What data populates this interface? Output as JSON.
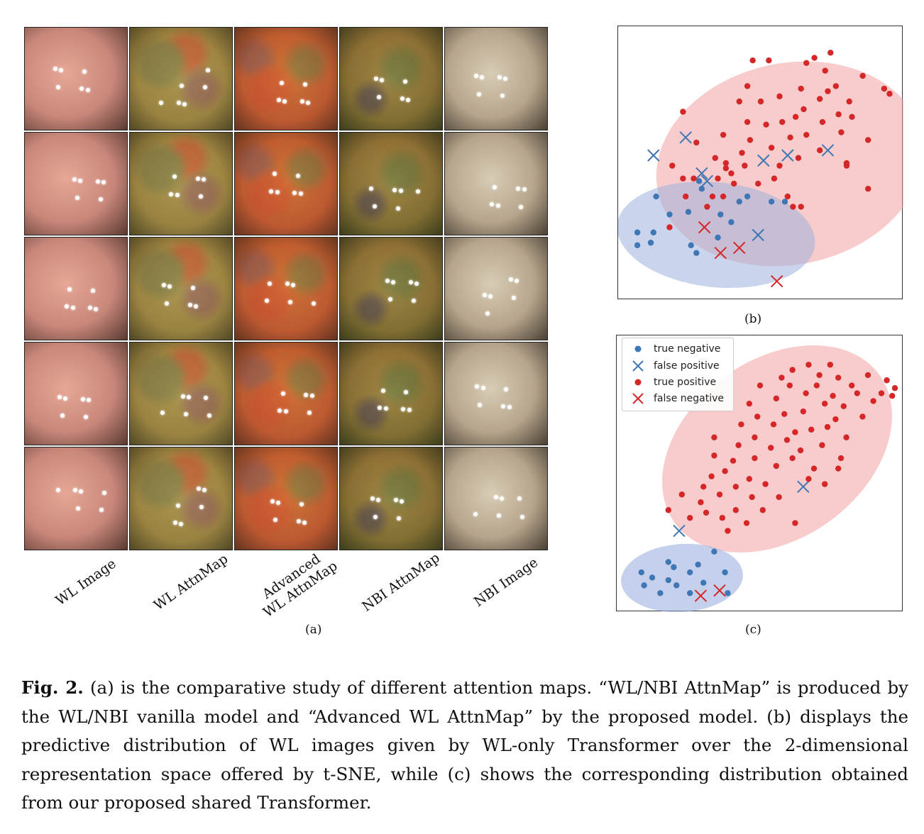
{
  "panel_a": {
    "column_labels": [
      {
        "lines": [
          "WL Image"
        ]
      },
      {
        "lines": [
          "WL AttnMap"
        ]
      },
      {
        "lines": [
          "Advanced",
          "WL AttnMap"
        ]
      },
      {
        "lines": [
          "NBI AttnMap"
        ]
      },
      {
        "lines": [
          "NBI Image"
        ]
      }
    ],
    "sublabel": "(a)",
    "rows": 5
  },
  "panel_b": {
    "sublabel": "(b)"
  },
  "panel_c": {
    "sublabel": "(c)",
    "legend": [
      {
        "label": "true negative",
        "marker": "dot",
        "color": "#3f77b4"
      },
      {
        "label": "false positive",
        "marker": "x",
        "color": "#3f77b4"
      },
      {
        "label": "true positive",
        "marker": "dot",
        "color": "#d62728"
      },
      {
        "label": "false negative",
        "marker": "x",
        "color": "#d62728"
      }
    ]
  },
  "colors": {
    "negative": "#3f77b4",
    "positive": "#d62728",
    "negative_region": "#9fb3df",
    "positive_region": "#f2a3a3"
  },
  "chart_data": [
    {
      "type": "scatter",
      "title": "(b)",
      "xlim": [
        0,
        100
      ],
      "ylim": [
        0,
        100
      ],
      "series": [
        {
          "name": "true negative",
          "marker": "dot",
          "points": [
            [
              4,
              23
            ],
            [
              10,
              23
            ],
            [
              9,
              19
            ],
            [
              4,
              18
            ],
            [
              24,
              18
            ],
            [
              11,
              37
            ],
            [
              16,
              30
            ],
            [
              23,
              31
            ],
            [
              28,
              40
            ],
            [
              27,
              43
            ],
            [
              42,
              35
            ],
            [
              45,
              37
            ],
            [
              54,
              35
            ],
            [
              59,
              35
            ],
            [
              35,
              30
            ],
            [
              39,
              27
            ],
            [
              34,
              21
            ],
            [
              26,
              15
            ]
          ]
        },
        {
          "name": "false positive",
          "marker": "x",
          "points": [
            [
              10,
              53
            ],
            [
              22,
              60
            ],
            [
              28,
              46
            ],
            [
              30,
              43
            ],
            [
              51,
              51
            ],
            [
              60,
              53
            ],
            [
              75,
              55
            ],
            [
              49,
              22
            ]
          ]
        },
        {
          "name": "true positive",
          "marker": "dot",
          "points": [
            [
              16,
              25
            ],
            [
              21,
              44
            ],
            [
              17,
              49
            ],
            [
              22,
              37
            ],
            [
              25,
              44
            ],
            [
              21,
              70
            ],
            [
              26,
              58
            ],
            [
              33,
              52
            ],
            [
              36,
              61
            ],
            [
              37,
              48
            ],
            [
              39,
              46
            ],
            [
              42,
              74
            ],
            [
              43,
              54
            ],
            [
              45,
              66
            ],
            [
              46,
              59
            ],
            [
              45,
              80
            ],
            [
              50,
              74
            ],
            [
              47,
              90
            ],
            [
              53,
              90
            ],
            [
              52,
              65
            ],
            [
              54,
              56
            ],
            [
              55,
              44
            ],
            [
              57,
              49
            ],
            [
              57,
              76
            ],
            [
              58,
              66
            ],
            [
              61,
              60
            ],
            [
              63,
              68
            ],
            [
              64,
              52
            ],
            [
              66,
              71
            ],
            [
              65,
              79
            ],
            [
              67,
              61
            ],
            [
              67,
              89
            ],
            [
              70,
              91
            ],
            [
              72,
              55
            ],
            [
              73,
              66
            ],
            [
              72,
              75
            ],
            [
              74,
              86
            ],
            [
              76,
              93
            ],
            [
              75,
              78
            ],
            [
              78,
              80
            ],
            [
              79,
              69
            ],
            [
              80,
              62
            ],
            [
              83,
              74
            ],
            [
              84,
              68
            ],
            [
              82,
              50
            ],
            [
              88,
              84
            ],
            [
              90,
              59
            ],
            [
              90,
              40
            ],
            [
              96,
              79
            ],
            [
              98,
              77
            ],
            [
              82,
              49
            ],
            [
              60,
              37
            ],
            [
              62,
              33
            ],
            [
              65,
              33
            ],
            [
              49,
              42
            ],
            [
              44,
              49
            ],
            [
              40,
              42
            ],
            [
              36,
              37
            ],
            [
              32,
              37
            ],
            [
              30,
              33
            ],
            [
              37,
              50
            ],
            [
              34,
              44
            ]
          ]
        },
        {
          "name": "false negative",
          "marker": "x",
          "points": [
            [
              29,
              25
            ],
            [
              35,
              15
            ],
            [
              42,
              17
            ],
            [
              56,
              4
            ]
          ]
        }
      ]
    },
    {
      "type": "scatter",
      "title": "(c)",
      "xlim": [
        0,
        100
      ],
      "ylim": [
        0,
        100
      ],
      "series": [
        {
          "name": "true negative",
          "marker": "dot",
          "points": [
            [
              6,
              12
            ],
            [
              7,
              7
            ],
            [
              10,
              10
            ],
            [
              13,
              4
            ],
            [
              16,
              16
            ],
            [
              16,
              9
            ],
            [
              18,
              14
            ],
            [
              19,
              7
            ],
            [
              24,
              12
            ],
            [
              24,
              4
            ],
            [
              27,
              15
            ],
            [
              29,
              8
            ],
            [
              33,
              20
            ],
            [
              37,
              12
            ],
            [
              38,
              4
            ]
          ]
        },
        {
          "name": "false positive",
          "marker": "x",
          "points": [
            [
              20,
              28
            ],
            [
              66,
              45
            ]
          ]
        },
        {
          "name": "true positive",
          "marker": "dot",
          "points": [
            [
              16,
              36
            ],
            [
              21,
              42
            ],
            [
              24,
              33
            ],
            [
              28,
              39
            ],
            [
              29,
              45
            ],
            [
              30,
              35
            ],
            [
              32,
              49
            ],
            [
              33,
              57
            ],
            [
              33,
              64
            ],
            [
              35,
              42
            ],
            [
              36,
              33
            ],
            [
              37,
              51
            ],
            [
              38,
              28
            ],
            [
              40,
              55
            ],
            [
              41,
              36
            ],
            [
              41,
              45
            ],
            [
              42,
              61
            ],
            [
              43,
              69
            ],
            [
              45,
              31
            ],
            [
              46,
              48
            ],
            [
              46,
              77
            ],
            [
              47,
              41
            ],
            [
              48,
              56
            ],
            [
              48,
              64
            ],
            [
              49,
              72
            ],
            [
              50,
              84
            ],
            [
              51,
              36
            ],
            [
              52,
              46
            ],
            [
              54,
              60
            ],
            [
              55,
              69
            ],
            [
              56,
              53
            ],
            [
              56,
              79
            ],
            [
              57,
              41
            ],
            [
              58,
              87
            ],
            [
              59,
              73
            ],
            [
              60,
              63
            ],
            [
              61,
              84
            ],
            [
              62,
              90
            ],
            [
              62,
              56
            ],
            [
              63,
              66
            ],
            [
              63,
              31
            ],
            [
              65,
              59
            ],
            [
              66,
              74
            ],
            [
              67,
              81
            ],
            [
              68,
              92
            ],
            [
              68,
              48
            ],
            [
              69,
              67
            ],
            [
              70,
              52
            ],
            [
              71,
              84
            ],
            [
              72,
              88
            ],
            [
              73,
              61
            ],
            [
              74,
              77
            ],
            [
              75,
              68
            ],
            [
              76,
              92
            ],
            [
              77,
              80
            ],
            [
              78,
              71
            ],
            [
              79,
              87
            ],
            [
              80,
              56
            ],
            [
              81,
              76
            ],
            [
              82,
              64
            ],
            [
              84,
              84
            ],
            [
              86,
              81
            ],
            [
              88,
              72
            ],
            [
              90,
              88
            ],
            [
              92,
              78
            ],
            [
              95,
              81
            ],
            [
              97,
              86
            ],
            [
              99,
              80
            ],
            [
              100,
              83
            ],
            [
              79,
              52
            ],
            [
              74,
              46
            ]
          ]
        },
        {
          "name": "false negative",
          "marker": "x",
          "points": [
            [
              28,
              3
            ],
            [
              35,
              5
            ]
          ]
        }
      ]
    }
  ],
  "caption": {
    "label": "Fig. 2.",
    "text": " (a) is the comparative study of different attention maps. “WL/NBI AttnMap” is produced by the WL/NBI vanilla model and “Advanced WL AttnMap” by the proposed model. (b) displays the predictive distribution of WL images given by WL-only Transformer over the 2-dimensional representation space offered by t-SNE, while (c) shows the corresponding distribution obtained from our proposed shared Transformer."
  }
}
